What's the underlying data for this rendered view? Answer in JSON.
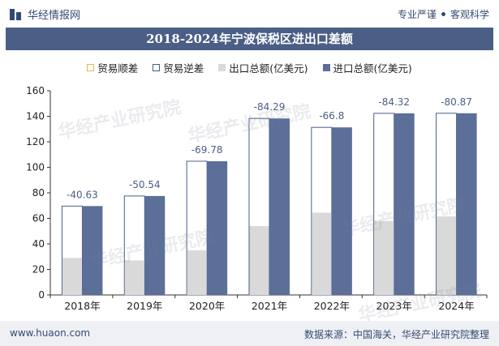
{
  "header": {
    "brand_name": "华经情报网",
    "tagline_left": "专业严谨",
    "tagline_right": "客观科学"
  },
  "title": "2018-2024年宁波保税区进出口差额",
  "footer": {
    "website": "www.huaon.com",
    "source": "数据来源：中国海关，华经产业研究院整理"
  },
  "watermark": "华经产业研究院",
  "colors": {
    "import": "#5b6f98",
    "export": "#d9d9d9",
    "balance_border": "#4a5e86",
    "trade_deficit_label": "#4a5e86",
    "surplus_swatch": "#e8b84a"
  },
  "chart_data": {
    "type": "bar",
    "categories": [
      "2018年",
      "2019年",
      "2020年",
      "2021年",
      "2022年",
      "2023年",
      "2024年"
    ],
    "series": [
      {
        "name": "贸易顺差",
        "values": [
          0,
          0,
          0,
          0,
          0,
          0,
          0
        ]
      },
      {
        "name": "贸易逆差",
        "values": [
          -40.63,
          -50.54,
          -69.78,
          -84.29,
          -66.8,
          -84.32,
          -80.87
        ]
      },
      {
        "name": "出口总额(亿美元)",
        "values": [
          29.0,
          27.0,
          35.0,
          54.0,
          64.5,
          58.0,
          61.5
        ]
      },
      {
        "name": "进口总额(亿美元)",
        "values": [
          69.63,
          77.54,
          104.78,
          138.29,
          131.3,
          142.32,
          142.37
        ]
      }
    ],
    "labels": [
      "-40.63",
      "-50.54",
      "-69.78",
      "-84.29",
      "-66.8",
      "-84.32",
      "-80.87"
    ],
    "ylim": [
      0,
      160
    ],
    "yticks": [
      0,
      20,
      40,
      60,
      80,
      100,
      120,
      140,
      160
    ],
    "grid": false,
    "legend_position": "top"
  }
}
